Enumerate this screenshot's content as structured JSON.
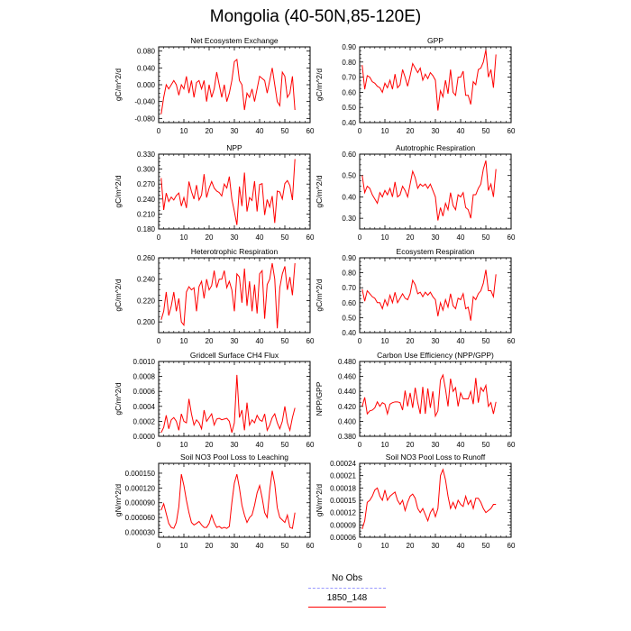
{
  "title": "Mongolia (40-50N,85-120E)",
  "line_color": "#ff0000",
  "legend": {
    "items": [
      {
        "label": "No Obs",
        "color": "#9999ff",
        "style": "dashed"
      },
      {
        "label": "1850_148",
        "color": "#ff0000",
        "style": "solid"
      }
    ]
  },
  "chart_data": [
    {
      "type": "line",
      "title": "Net Ecosystem Exchange",
      "ylabel": "gC/m^2/d",
      "xlim": [
        0,
        60
      ],
      "xticks": [
        0,
        10,
        20,
        30,
        40,
        50,
        60
      ],
      "ylim": [
        -0.09,
        0.09
      ],
      "yticks": [
        -0.08,
        -0.04,
        0.0,
        0.04,
        0.08
      ],
      "ytick_labels": [
        "-0.080",
        "-0.040",
        "0.000",
        "0.040",
        "0.080"
      ],
      "series": [
        {
          "values": [
            -0.07,
            -0.03,
            0.0,
            -0.01,
            0.0,
            0.01,
            0.0,
            -0.025,
            0.0,
            -0.01,
            0.02,
            -0.02,
            0.01,
            -0.03,
            0.005,
            0.01,
            -0.01,
            0.01,
            -0.04,
            0.0,
            -0.03,
            -0.01,
            0.03,
            0.0,
            -0.03,
            0.0,
            -0.04,
            -0.02,
            0.01,
            0.055,
            0.06,
            0.01,
            0.0,
            -0.06,
            -0.02,
            -0.03,
            -0.01,
            -0.04,
            -0.01,
            0.02,
            0.015,
            0.01,
            -0.02,
            0.01,
            0.04,
            0.0,
            -0.04,
            -0.05,
            0.03,
            0.02,
            -0.03,
            -0.02,
            0.02,
            -0.06
          ]
        }
      ]
    },
    {
      "type": "line",
      "title": "GPP",
      "ylabel": "gC/m^2/d",
      "xlim": [
        0,
        60
      ],
      "xticks": [
        0,
        10,
        20,
        30,
        40,
        50,
        60
      ],
      "ylim": [
        0.4,
        0.9
      ],
      "yticks": [
        0.4,
        0.5,
        0.6,
        0.7,
        0.8,
        0.9
      ],
      "ytick_labels": [
        "0.40",
        "0.50",
        "0.60",
        "0.70",
        "0.80",
        "0.90"
      ],
      "series": [
        {
          "values": [
            0.78,
            0.62,
            0.71,
            0.7,
            0.67,
            0.66,
            0.64,
            0.63,
            0.6,
            0.66,
            0.63,
            0.68,
            0.62,
            0.72,
            0.63,
            0.65,
            0.75,
            0.7,
            0.64,
            0.71,
            0.79,
            0.76,
            0.73,
            0.76,
            0.68,
            0.72,
            0.69,
            0.73,
            0.71,
            0.68,
            0.48,
            0.61,
            0.57,
            0.68,
            0.59,
            0.75,
            0.6,
            0.58,
            0.7,
            0.7,
            0.74,
            0.58,
            0.58,
            0.52,
            0.67,
            0.65,
            0.75,
            0.76,
            0.8,
            0.88,
            0.7,
            0.75,
            0.63,
            0.85
          ]
        }
      ]
    },
    {
      "type": "line",
      "title": "NPP",
      "ylabel": "gC/m^2/d",
      "xlim": [
        0,
        60
      ],
      "xticks": [
        0,
        10,
        20,
        30,
        40,
        50,
        60
      ],
      "ylim": [
        0.18,
        0.33
      ],
      "yticks": [
        0.18,
        0.21,
        0.24,
        0.27,
        0.3,
        0.33
      ],
      "ytick_labels": [
        "0.180",
        "0.210",
        "0.240",
        "0.270",
        "0.300",
        "0.330"
      ],
      "series": [
        {
          "values": [
            0.282,
            0.218,
            0.252,
            0.235,
            0.244,
            0.238,
            0.247,
            0.252,
            0.226,
            0.243,
            0.222,
            0.275,
            0.255,
            0.24,
            0.268,
            0.238,
            0.248,
            0.29,
            0.243,
            0.262,
            0.275,
            0.262,
            0.256,
            0.253,
            0.246,
            0.27,
            0.262,
            0.285,
            0.24,
            0.215,
            0.188,
            0.265,
            0.226,
            0.293,
            0.215,
            0.243,
            0.237,
            0.276,
            0.215,
            0.269,
            0.271,
            0.208,
            0.239,
            0.224,
            0.246,
            0.192,
            0.256,
            0.254,
            0.24,
            0.271,
            0.277,
            0.267,
            0.238,
            0.32
          ]
        }
      ]
    },
    {
      "type": "line",
      "title": "Autotrophic Respiration",
      "ylabel": "gC/m^2/d",
      "xlim": [
        0,
        60
      ],
      "xticks": [
        0,
        10,
        20,
        30,
        40,
        50,
        60
      ],
      "ylim": [
        0.25,
        0.6
      ],
      "yticks": [
        0.3,
        0.4,
        0.5,
        0.6
      ],
      "ytick_labels": [
        "0.30",
        "0.40",
        "0.50",
        "0.60"
      ],
      "series": [
        {
          "values": [
            0.5,
            0.42,
            0.45,
            0.44,
            0.41,
            0.39,
            0.37,
            0.42,
            0.4,
            0.43,
            0.41,
            0.44,
            0.4,
            0.47,
            0.4,
            0.41,
            0.45,
            0.43,
            0.4,
            0.46,
            0.52,
            0.49,
            0.44,
            0.46,
            0.45,
            0.46,
            0.44,
            0.46,
            0.43,
            0.4,
            0.29,
            0.35,
            0.31,
            0.37,
            0.34,
            0.42,
            0.36,
            0.34,
            0.41,
            0.4,
            0.42,
            0.35,
            0.34,
            0.3,
            0.41,
            0.41,
            0.44,
            0.46,
            0.53,
            0.57,
            0.43,
            0.46,
            0.4,
            0.53
          ]
        }
      ]
    },
    {
      "type": "line",
      "title": "Heterotrophic Respiration",
      "ylabel": "gC/m^2/d",
      "xlim": [
        0,
        60
      ],
      "xticks": [
        0,
        10,
        20,
        30,
        40,
        50,
        60
      ],
      "ylim": [
        0.19,
        0.26
      ],
      "yticks": [
        0.2,
        0.22,
        0.24,
        0.26
      ],
      "ytick_labels": [
        "0.200",
        "0.220",
        "0.240",
        "0.260"
      ],
      "series": [
        {
          "values": [
            0.202,
            0.21,
            0.228,
            0.206,
            0.215,
            0.228,
            0.21,
            0.222,
            0.2,
            0.197,
            0.228,
            0.233,
            0.23,
            0.232,
            0.21,
            0.233,
            0.238,
            0.222,
            0.24,
            0.23,
            0.234,
            0.248,
            0.232,
            0.24,
            0.24,
            0.248,
            0.232,
            0.238,
            0.23,
            0.21,
            0.245,
            0.242,
            0.218,
            0.25,
            0.215,
            0.238,
            0.21,
            0.235,
            0.208,
            0.245,
            0.248,
            0.203,
            0.235,
            0.24,
            0.255,
            0.24,
            0.194,
            0.232,
            0.245,
            0.252,
            0.23,
            0.242,
            0.225,
            0.255
          ]
        }
      ]
    },
    {
      "type": "line",
      "title": "Ecosystem Respiration",
      "ylabel": "gC/m^2/d",
      "xlim": [
        0,
        60
      ],
      "xticks": [
        0,
        10,
        20,
        30,
        40,
        50,
        60
      ],
      "ylim": [
        0.4,
        0.9
      ],
      "yticks": [
        0.4,
        0.5,
        0.6,
        0.7,
        0.8,
        0.9
      ],
      "ytick_labels": [
        "0.40",
        "0.50",
        "0.60",
        "0.70",
        "0.80",
        "0.90"
      ],
      "series": [
        {
          "values": [
            0.69,
            0.61,
            0.68,
            0.66,
            0.64,
            0.63,
            0.6,
            0.6,
            0.56,
            0.62,
            0.58,
            0.65,
            0.6,
            0.67,
            0.6,
            0.63,
            0.66,
            0.63,
            0.62,
            0.66,
            0.75,
            0.72,
            0.66,
            0.67,
            0.64,
            0.67,
            0.65,
            0.67,
            0.64,
            0.62,
            0.51,
            0.6,
            0.55,
            0.62,
            0.57,
            0.66,
            0.58,
            0.56,
            0.63,
            0.62,
            0.66,
            0.56,
            0.57,
            0.48,
            0.64,
            0.62,
            0.66,
            0.68,
            0.73,
            0.82,
            0.68,
            0.68,
            0.64,
            0.79
          ]
        }
      ]
    },
    {
      "type": "line",
      "title": "Gridcell Surface CH4 Flux",
      "ylabel": "gC/m^2/d",
      "xlim": [
        0,
        60
      ],
      "xticks": [
        0,
        10,
        20,
        30,
        40,
        50,
        60
      ],
      "ylim": [
        0.0,
        0.001
      ],
      "yticks": [
        0.0,
        0.0002,
        0.0004,
        0.0006,
        0.0008,
        0.001
      ],
      "ytick_labels": [
        "0.0000",
        "0.0002",
        "0.0004",
        "0.0006",
        "0.0008",
        "0.0010"
      ],
      "series": [
        {
          "values": [
            5e-05,
            0.00012,
            0.00028,
            0.0001,
            0.00022,
            0.00025,
            0.0002,
            8e-05,
            0.0003,
            0.0002,
            0.00018,
            0.0005,
            0.0003,
            0.00015,
            0.00022,
            0.00018,
            0.0001,
            0.00035,
            0.0002,
            0.00025,
            0.0003,
            0.00015,
            0.00023,
            0.00024,
            0.00022,
            0.00023,
            0.00024,
            0.0002,
            5e-05,
            0.00018,
            0.00082,
            0.00025,
            0.00035,
            8e-05,
            0.00045,
            0.00015,
            0.00022,
            0.00018,
            0.00028,
            0.00022,
            0.0002,
            0.0003,
            8e-05,
            0.00015,
            0.00025,
            0.0003,
            0.00018,
            0.0001,
            0.0002,
            0.0004,
            0.00018,
            8e-05,
            0.00025,
            0.00038
          ]
        }
      ]
    },
    {
      "type": "line",
      "title": "Carbon Use Efficiency (NPP/GPP)",
      "ylabel": "NPP/GPP",
      "xlim": [
        0,
        60
      ],
      "xticks": [
        0,
        10,
        20,
        30,
        40,
        50,
        60
      ],
      "ylim": [
        0.38,
        0.48
      ],
      "yticks": [
        0.38,
        0.4,
        0.42,
        0.44,
        0.46,
        0.48
      ],
      "ytick_labels": [
        "0.380",
        "0.400",
        "0.420",
        "0.440",
        "0.460",
        "0.480"
      ],
      "series": [
        {
          "values": [
            0.42,
            0.432,
            0.41,
            0.414,
            0.415,
            0.418,
            0.426,
            0.42,
            0.425,
            0.423,
            0.41,
            0.423,
            0.425,
            0.426,
            0.426,
            0.425,
            0.415,
            0.441,
            0.42,
            0.438,
            0.418,
            0.445,
            0.425,
            0.41,
            0.446,
            0.41,
            0.444,
            0.418,
            0.44,
            0.407,
            0.414,
            0.455,
            0.462,
            0.443,
            0.42,
            0.457,
            0.44,
            0.445,
            0.42,
            0.438,
            0.43,
            0.43,
            0.43,
            0.44,
            0.423,
            0.458,
            0.425,
            0.445,
            0.44,
            0.448,
            0.42,
            0.425,
            0.41,
            0.426
          ]
        }
      ]
    },
    {
      "type": "line",
      "title": "Soil NO3 Pool Loss to Leaching",
      "ylabel": "gN/m^2/d",
      "xlim": [
        0,
        60
      ],
      "xticks": [
        0,
        10,
        20,
        30,
        40,
        50,
        60
      ],
      "ylim": [
        2e-05,
        0.00017
      ],
      "yticks": [
        3e-05,
        6e-05,
        9e-05,
        0.00012,
        0.00015
      ],
      "ytick_labels": [
        "0.000030",
        "0.000060",
        "0.000090",
        "0.000120",
        "0.000150"
      ],
      "series": [
        {
          "values": [
            7.5e-05,
            8.8e-05,
            6.8e-05,
            4.8e-05,
            4e-05,
            3.8e-05,
            5e-05,
            8.2e-05,
            0.000148,
            0.000125,
            9.5e-05,
            7e-05,
            5e-05,
            4.5e-05,
            4.8e-05,
            5.2e-05,
            4.5e-05,
            4e-05,
            4e-05,
            4.8e-05,
            6.5e-05,
            5e-05,
            4e-05,
            4.2e-05,
            3.8e-05,
            4e-05,
            3.8e-05,
            4.2e-05,
            9e-05,
            0.00013,
            0.000148,
            0.00012,
            8.5e-05,
            6.5e-05,
            5e-05,
            6e-05,
            6.5e-05,
            8.5e-05,
            0.00011,
            0.000125,
            0.0001,
            7e-05,
            6e-05,
            0.000115,
            0.000155,
            0.000128,
            8e-05,
            6e-05,
            5.5e-05,
            5e-05,
            6.5e-05,
            4e-05,
            3.8e-05,
            7e-05
          ]
        }
      ]
    },
    {
      "type": "line",
      "title": "Soil NO3 Pool Loss to Runoff",
      "ylabel": "gN/m^2/d",
      "xlim": [
        0,
        60
      ],
      "xticks": [
        0,
        10,
        20,
        30,
        40,
        50,
        60
      ],
      "ylim": [
        6e-05,
        0.00024
      ],
      "yticks": [
        6e-05,
        9e-05,
        0.00012,
        0.00015,
        0.00018,
        0.00021,
        0.00024
      ],
      "ytick_labels": [
        "0.00006",
        "0.00009",
        "0.00012",
        "0.00015",
        "0.00018",
        "0.00021",
        "0.00024"
      ],
      "series": [
        {
          "values": [
            8e-05,
            0.0001,
            0.000145,
            0.00015,
            0.00016,
            0.000175,
            0.00018,
            0.00016,
            0.00015,
            0.000175,
            0.00015,
            0.00016,
            0.000165,
            0.00017,
            0.00015,
            0.00014,
            0.00015,
            0.000125,
            0.000145,
            0.00016,
            0.000165,
            0.000155,
            0.00013,
            0.00012,
            0.00013,
            0.000115,
            0.0001,
            0.00012,
            0.00013,
            0.00011,
            0.00013,
            0.00021,
            0.000225,
            0.0002,
            0.00016,
            0.00013,
            0.000145,
            0.00013,
            0.00015,
            0.00014,
            0.000135,
            0.00016,
            0.00014,
            0.00015,
            0.00013,
            0.000155,
            0.000155,
            0.000145,
            0.00013,
            0.00012,
            0.000125,
            0.00013,
            0.00014,
            0.00014
          ]
        }
      ]
    }
  ]
}
